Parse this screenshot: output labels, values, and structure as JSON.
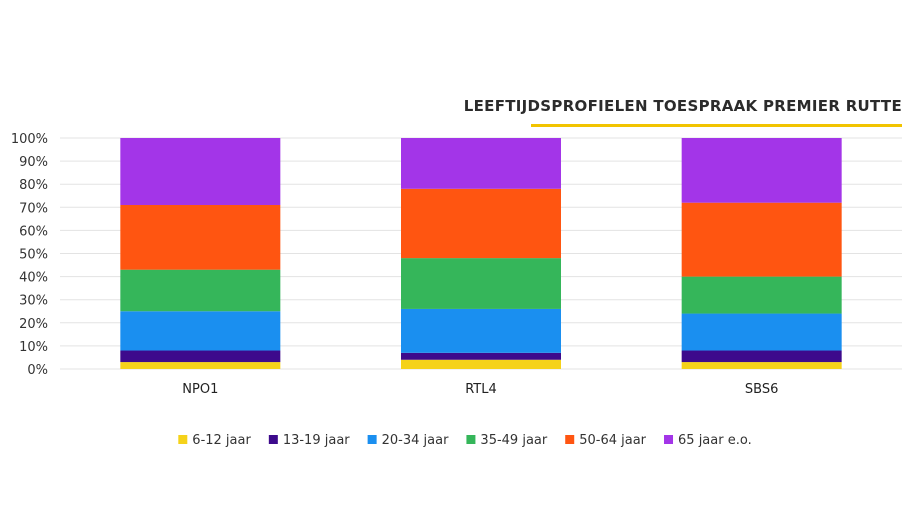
{
  "chart_data": {
    "type": "bar",
    "stacked": true,
    "title": "LEEFTIJDSPROFIELEN TOESPRAAK PREMIER RUTTE",
    "categories": [
      "NPO1",
      "RTL4",
      "SBS6"
    ],
    "y_ticks": [
      "0%",
      "10%",
      "20%",
      "30%",
      "40%",
      "50%",
      "60%",
      "70%",
      "80%",
      "90%",
      "100%"
    ],
    "ylim": [
      0,
      100
    ],
    "grid": true,
    "legend_position": "bottom",
    "series": [
      {
        "name": "6-12 jaar",
        "color": "#f5d21a",
        "values": [
          3,
          4,
          3
        ]
      },
      {
        "name": "13-19 jaar",
        "color": "#3d0a8c",
        "values": [
          5,
          3,
          5
        ]
      },
      {
        "name": "20-34 jaar",
        "color": "#1a8ff0",
        "values": [
          17,
          19,
          16
        ]
      },
      {
        "name": "35-49 jaar",
        "color": "#35b65a",
        "values": [
          18,
          22,
          16
        ]
      },
      {
        "name": "50-64 jaar",
        "color": "#ff5511",
        "values": [
          28,
          30,
          32
        ]
      },
      {
        "name": "65 jaar e.o.",
        "color": "#a335e8",
        "values": [
          29,
          22,
          28
        ]
      }
    ],
    "accent_color": "#f2c400"
  }
}
